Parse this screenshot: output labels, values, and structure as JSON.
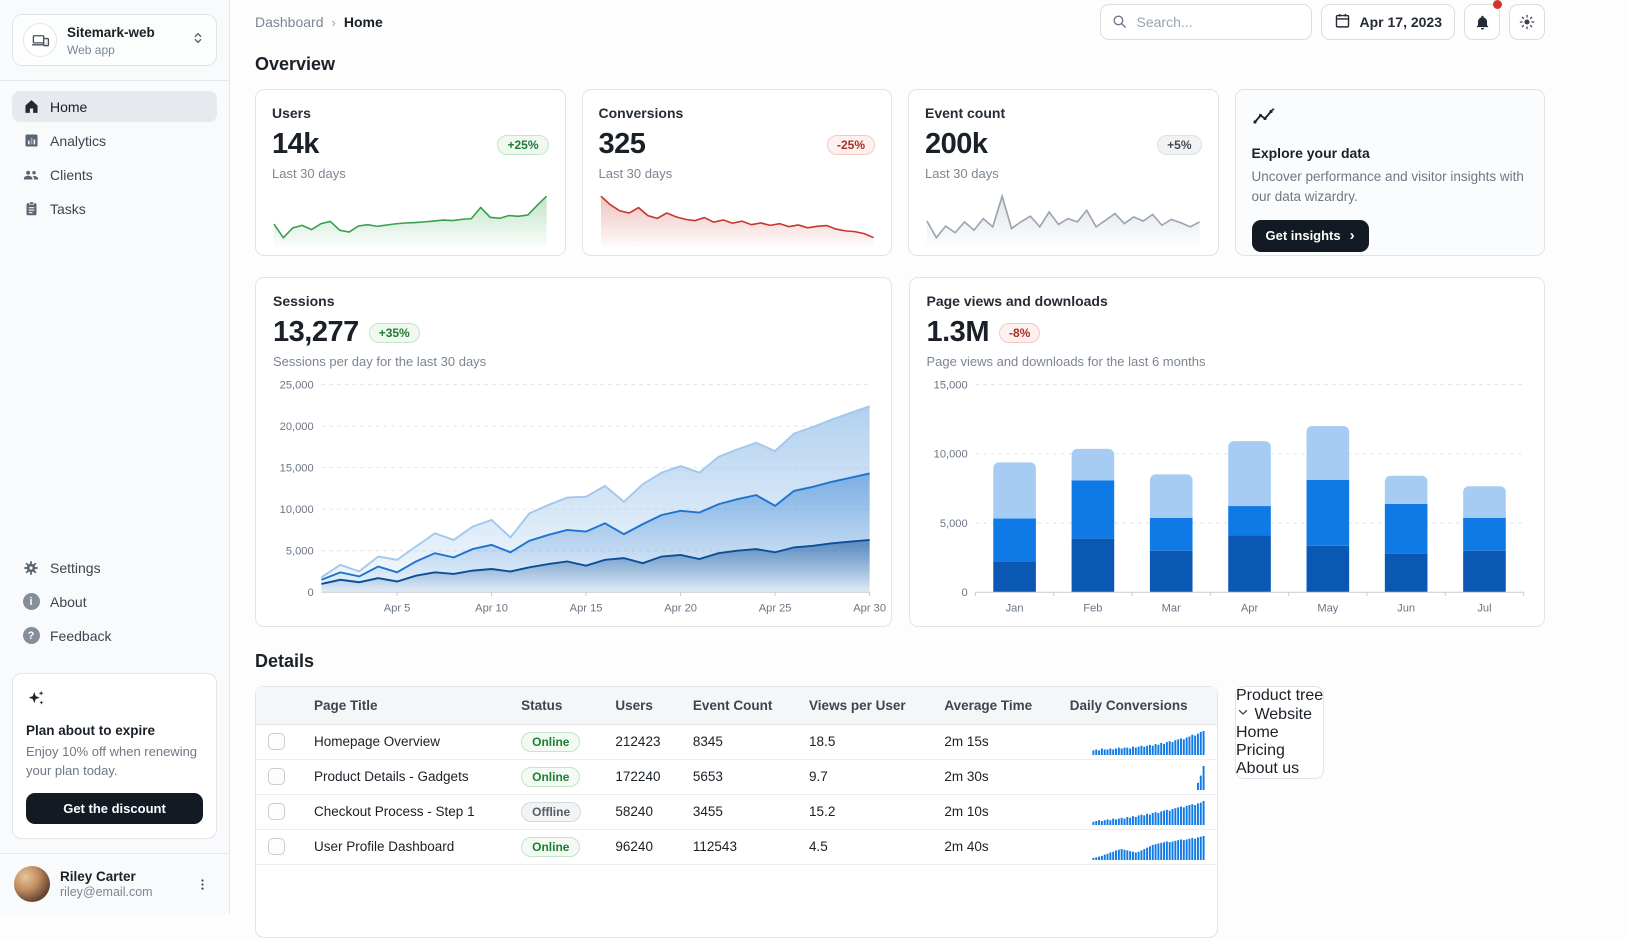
{
  "colors": {
    "success": "#1e7a33",
    "error": "#ad2c23",
    "neutral": "#454c56",
    "brand_dark": "#131a23",
    "bar_blues": [
      "#0a58b4",
      "#0f7ae5",
      "#a7ccf4"
    ],
    "area_blues": [
      "#0b4f98",
      "#1e74cd",
      "#a3c8ec"
    ]
  },
  "sidebar": {
    "workspace": {
      "name": "Sitemark-web",
      "type": "Web app"
    },
    "nav": [
      {
        "label": "Home",
        "icon": "home-icon",
        "active": true
      },
      {
        "label": "Analytics",
        "icon": "analytics-icon",
        "active": false
      },
      {
        "label": "Clients",
        "icon": "people-icon",
        "active": false
      },
      {
        "label": "Tasks",
        "icon": "clipboard-icon",
        "active": false
      }
    ],
    "secondary_nav": [
      {
        "label": "Settings",
        "icon": "gear-icon"
      },
      {
        "label": "About",
        "icon": "info-icon"
      },
      {
        "label": "Feedback",
        "icon": "help-icon"
      }
    ],
    "promo": {
      "title": "Plan about to expire",
      "body": "Enjoy 10% off when renewing your plan today.",
      "button": "Get the discount"
    },
    "user": {
      "name": "Riley Carter",
      "email": "riley@email.com"
    }
  },
  "header": {
    "breadcrumb": {
      "root": "Dashboard",
      "current": "Home",
      "separator": "›"
    },
    "search": {
      "placeholder": "Search..."
    },
    "date_button": "Apr 17, 2023"
  },
  "overview": {
    "title": "Overview",
    "cards": [
      {
        "title": "Users",
        "value": "14k",
        "badge": "+25%",
        "trend": "up",
        "caption": "Last 30 days"
      },
      {
        "title": "Conversions",
        "value": "325",
        "badge": "-25%",
        "trend": "down",
        "caption": "Last 30 days"
      },
      {
        "title": "Event count",
        "value": "200k",
        "badge": "+5%",
        "trend": "neutral",
        "caption": "Last 30 days"
      }
    ],
    "explore": {
      "title": "Explore your data",
      "body": "Uncover performance and visitor insights with our data wizardry.",
      "button": "Get insights",
      "chevron": "›"
    }
  },
  "details": {
    "title": "Details",
    "table": {
      "columns": [
        "Page Title",
        "Status",
        "Users",
        "Event Count",
        "Views per User",
        "Average Time",
        "Daily Conversions"
      ],
      "rows": [
        {
          "page_title": "Homepage Overview",
          "status": "Online",
          "users": "212423",
          "event_count": "8345",
          "views_per_user": "18.5",
          "average_time": "2m 15s",
          "spark": [
            5,
            6,
            5,
            7,
            6,
            6,
            7,
            6,
            7,
            8,
            7,
            8,
            8,
            7,
            9,
            8,
            9,
            10,
            9,
            10,
            11,
            10,
            12,
            11,
            13,
            12,
            14,
            15,
            14,
            16,
            17,
            18,
            17,
            19,
            20,
            22,
            21,
            23,
            25,
            26
          ]
        },
        {
          "page_title": "Product Details - Gadgets",
          "status": "Online",
          "users": "172240",
          "event_count": "5653",
          "views_per_user": "9.7",
          "average_time": "2m 30s",
          "spark": [
            0,
            0,
            0,
            0,
            0,
            0,
            0,
            0,
            0,
            0,
            0,
            0,
            0,
            0,
            0,
            0,
            0,
            0,
            0,
            0,
            0,
            0,
            0,
            0,
            0,
            0,
            0,
            0,
            0,
            0,
            0,
            0,
            0,
            0,
            0,
            0,
            0,
            9,
            18,
            30
          ]
        },
        {
          "page_title": "Checkout Process - Step 1",
          "status": "Offline",
          "users": "58240",
          "event_count": "3455",
          "views_per_user": "15.2",
          "average_time": "2m 10s",
          "spark": [
            4,
            5,
            6,
            5,
            6,
            7,
            6,
            8,
            7,
            8,
            9,
            8,
            10,
            9,
            11,
            10,
            12,
            13,
            12,
            14,
            13,
            15,
            16,
            15,
            17,
            18,
            19,
            18,
            20,
            21,
            22,
            23,
            22,
            24,
            25,
            26,
            25,
            27,
            28,
            30
          ]
        },
        {
          "page_title": "User Profile Dashboard",
          "status": "Online",
          "users": "96240",
          "event_count": "112543",
          "views_per_user": "4.5",
          "average_time": "2m 40s",
          "spark": [
            3,
            4,
            5,
            6,
            8,
            9,
            11,
            12,
            14,
            15,
            16,
            15,
            14,
            13,
            12,
            11,
            12,
            14,
            16,
            18,
            20,
            22,
            23,
            24,
            25,
            26,
            27,
            26,
            27,
            28,
            29,
            30,
            29,
            30,
            31,
            32,
            31,
            33,
            34,
            35
          ]
        }
      ]
    },
    "product_tree": {
      "title": "Product tree",
      "root": "Website",
      "children": [
        {
          "label": "Home",
          "selected": true
        },
        {
          "label": "Pricing",
          "selected": false
        },
        {
          "label": "About us",
          "selected": false
        }
      ]
    }
  },
  "chart_data": [
    {
      "id": "sessions",
      "type": "area",
      "stacked": true,
      "title": "Sessions",
      "headline_value": "13,277",
      "badge": "+35%",
      "subtitle": "Sessions per day for the last 30 days",
      "x_tick_labels": [
        "Apr 5",
        "Apr 10",
        "Apr 15",
        "Apr 20",
        "Apr 25",
        "Apr 30"
      ],
      "x_tick_indices": [
        4,
        9,
        14,
        19,
        24,
        29
      ],
      "ylim": [
        0,
        25000
      ],
      "yticks": [
        0,
        5000,
        10000,
        15000,
        20000,
        25000
      ],
      "grid": "dashed-horizontal",
      "legend": "none",
      "series": [
        {
          "name": "bottom",
          "color": "#0b4f98",
          "values": [
            1000,
            1500,
            1200,
            1700,
            1300,
            2000,
            2400,
            2200,
            2600,
            2800,
            2500,
            3000,
            3400,
            3700,
            3200,
            3900,
            4100,
            3500,
            4300,
            4500,
            4000,
            4700,
            5000,
            5200,
            4800,
            5400,
            5600,
            5900,
            6100,
            6300
          ]
        },
        {
          "name": "middle",
          "color": "#1e74cd",
          "values": [
            500,
            900,
            700,
            1400,
            1100,
            1700,
            2300,
            2000,
            2600,
            2900,
            2300,
            3200,
            3500,
            3800,
            4100,
            4400,
            2900,
            4700,
            5000,
            5300,
            5600,
            5900,
            6200,
            6500,
            5600,
            6800,
            7100,
            7400,
            7700,
            8000
          ]
        },
        {
          "name": "top",
          "color": "#a3c8ec",
          "values": [
            300,
            900,
            600,
            1200,
            1500,
            1800,
            2400,
            2100,
            2700,
            3000,
            1800,
            3300,
            3600,
            3900,
            4200,
            4500,
            3900,
            4800,
            5100,
            5400,
            4800,
            5700,
            6000,
            6300,
            6600,
            6900,
            7200,
            7500,
            7800,
            8100
          ]
        }
      ]
    },
    {
      "id": "pageviews",
      "type": "bar",
      "stacked": true,
      "title": "Page views and downloads",
      "headline_value": "1.3M",
      "badge": "-8%",
      "subtitle": "Page views and downloads for the last 6 months",
      "categories": [
        "Jan",
        "Feb",
        "Mar",
        "Apr",
        "May",
        "Jun",
        "Jul"
      ],
      "ylim": [
        0,
        15000
      ],
      "yticks": [
        0,
        5000,
        10000,
        15000
      ],
      "grid": "dashed-horizontal",
      "legend": "none",
      "series": [
        {
          "name": "bottom",
          "color": "#0a58b4",
          "values": [
            2234,
            3872,
            2998,
            4125,
            3357,
            2789,
            2998
          ]
        },
        {
          "name": "middle",
          "color": "#0f7ae5",
          "values": [
            3098,
            4215,
            2384,
            2101,
            4752,
            3593,
            2384
          ]
        },
        {
          "name": "top",
          "color": "#a7ccf4",
          "values": [
            4051,
            2275,
            3129,
            4693,
            3904,
            2038,
            2275
          ]
        }
      ]
    },
    {
      "id": "users-trend",
      "type": "area",
      "color": "#37a24b",
      "values": [
        310,
        205,
        280,
        300,
        268,
        312,
        330,
        262,
        248,
        295,
        305,
        292,
        303,
        312,
        318,
        322,
        327,
        333,
        341,
        337,
        346,
        352,
        438,
        362,
        354,
        376,
        370,
        380,
        455,
        525
      ]
    },
    {
      "id": "conversions-trend",
      "type": "area",
      "color": "#c8362c",
      "values": [
        535,
        468,
        420,
        402,
        445,
        382,
        360,
        402,
        372,
        352,
        342,
        366,
        330,
        348,
        322,
        338,
        310,
        324,
        305,
        318,
        295,
        308,
        286,
        298,
        304,
        276,
        262,
        256,
        240,
        208
      ]
    },
    {
      "id": "event-count-trend",
      "type": "area",
      "color": "#9aa4b1",
      "values": [
        118,
        98,
        112,
        104,
        117,
        107,
        121,
        111,
        148,
        109,
        117,
        124,
        111,
        129,
        114,
        121,
        117,
        131,
        111,
        119,
        127,
        115,
        123,
        118,
        126,
        113,
        120,
        116,
        111,
        117
      ]
    }
  ]
}
